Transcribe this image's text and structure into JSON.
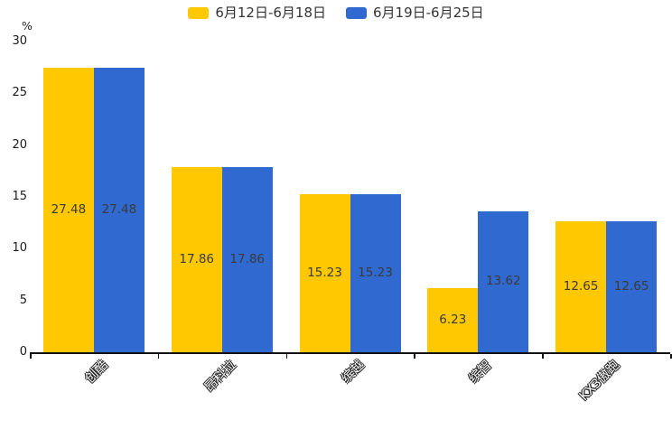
{
  "legend": {
    "items": [
      {
        "label": "6月12日-6月18日",
        "color": "#FFC800"
      },
      {
        "label": "6月19日-6月25日",
        "color": "#3069D0"
      }
    ]
  },
  "chart_data": {
    "type": "bar",
    "title": "",
    "unit_label": "%",
    "categories": [
      "创酷",
      "昂科拉",
      "缤越",
      "缤智",
      "KX3傲跑"
    ],
    "series": [
      {
        "name": "6月12日-6月18日",
        "color": "#FFC800",
        "values": [
          27.48,
          17.86,
          15.23,
          6.23,
          12.65
        ]
      },
      {
        "name": "6月19日-6月25日",
        "color": "#3069D0",
        "values": [
          27.48,
          17.86,
          15.23,
          13.62,
          12.65
        ]
      }
    ],
    "value_label_format": [
      "27.48",
      "17.86",
      "15.23",
      "6.23",
      "12.65",
      "27.48",
      "17.86",
      "15.23",
      "13.62",
      "12.65"
    ],
    "ylim": [
      0,
      30
    ],
    "yticks": [
      0,
      5,
      10,
      15,
      20,
      25,
      30
    ],
    "grid": false,
    "legend_position": "top",
    "value_labels": "inside-center",
    "xlabel_rotation_deg": 45
  }
}
